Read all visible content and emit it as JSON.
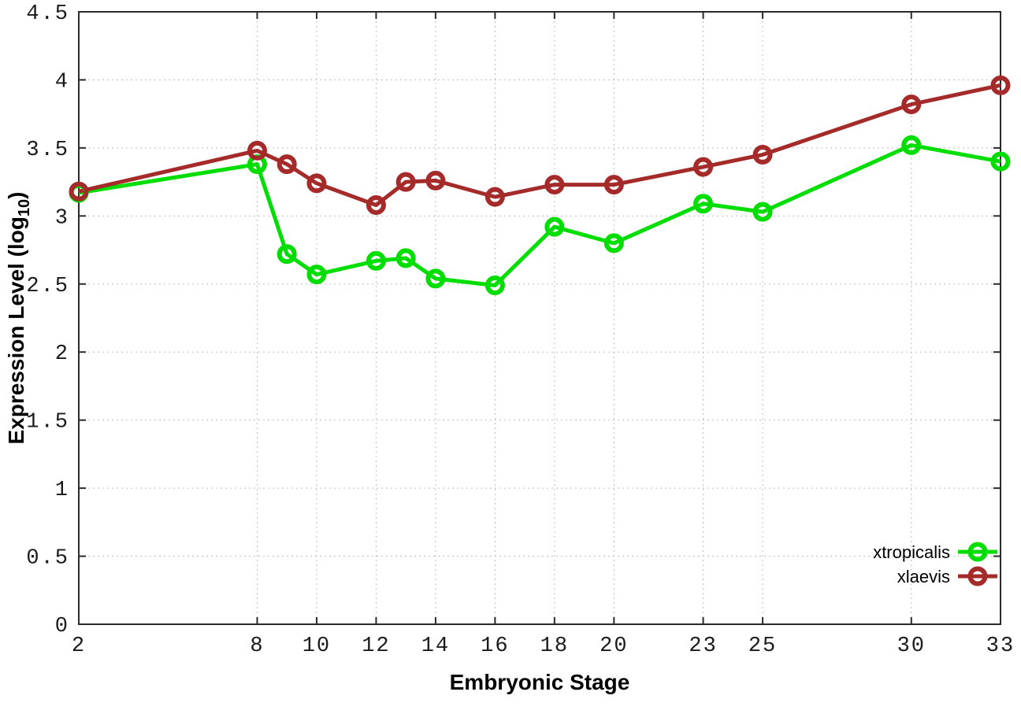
{
  "chart_data": {
    "type": "line",
    "title": "",
    "xlabel": "Embryonic Stage",
    "ylabel": {
      "pre": "Expression Level (log",
      "sub": "10",
      "post": ")"
    },
    "x": [
      2,
      8,
      9,
      10,
      12,
      13,
      14,
      16,
      18,
      20,
      23,
      25,
      30,
      33
    ],
    "xlim": [
      2,
      33
    ],
    "ylim": [
      0,
      4.5
    ],
    "xticks": [
      2,
      8,
      10,
      12,
      14,
      16,
      18,
      20,
      23,
      25,
      30,
      33
    ],
    "xtick_labels": [
      "2",
      "8",
      "10",
      "12",
      "14",
      "16",
      "18",
      "20",
      "23",
      "25",
      "30",
      "33"
    ],
    "yticks": [
      0,
      0.5,
      1,
      1.5,
      2,
      2.5,
      3,
      3.5,
      4,
      4.5
    ],
    "ytick_labels": [
      "0",
      "0.5",
      "1",
      "1.5",
      "2",
      "2.5",
      "3",
      "3.5",
      "4",
      "4.5"
    ],
    "grid": true,
    "legend_position": "bottom-right",
    "series": [
      {
        "name": "xtropicalis",
        "color": "#00dd00",
        "values": [
          3.17,
          3.38,
          2.72,
          2.57,
          2.67,
          2.69,
          2.54,
          2.49,
          2.92,
          2.8,
          3.09,
          3.03,
          3.52,
          3.4
        ]
      },
      {
        "name": "xlaevis",
        "color": "#a52a2a",
        "values": [
          3.18,
          3.48,
          3.38,
          3.24,
          3.08,
          3.25,
          3.26,
          3.14,
          3.23,
          3.23,
          3.36,
          3.45,
          3.82,
          3.96
        ]
      }
    ]
  }
}
